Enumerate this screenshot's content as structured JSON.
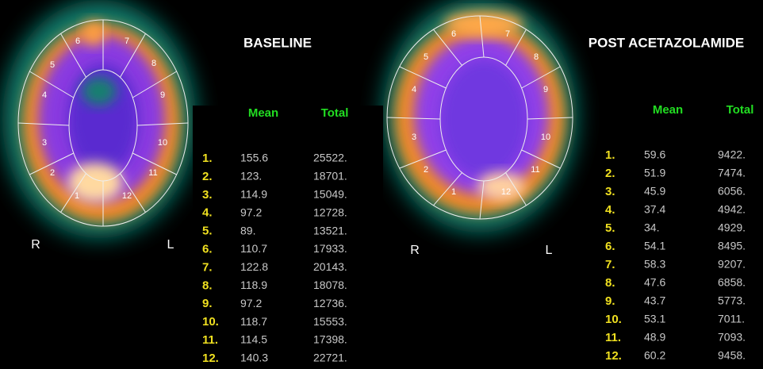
{
  "panels": [
    {
      "title": "BASELINE",
      "orientation": {
        "right": "R",
        "left": "L"
      },
      "regions": [
        "1",
        "2",
        "3",
        "4",
        "5",
        "6",
        "7",
        "8",
        "9",
        "10",
        "11",
        "12"
      ],
      "table": {
        "headers": [
          "Mean",
          "Total"
        ],
        "rows": [
          [
            "1.",
            "155.6",
            "25522."
          ],
          [
            "2.",
            "123.",
            "18701."
          ],
          [
            "3.",
            "114.9",
            "15049."
          ],
          [
            "4.",
            "97.2",
            "12728."
          ],
          [
            "5.",
            "89.",
            "13521."
          ],
          [
            "6.",
            "110.7",
            "17933."
          ],
          [
            "7.",
            "122.8",
            "20143."
          ],
          [
            "8.",
            "118.9",
            "18078."
          ],
          [
            "9.",
            "97.2",
            "12736."
          ],
          [
            "10.",
            "118.7",
            "15553."
          ],
          [
            "11.",
            "114.5",
            "17398."
          ],
          [
            "12.",
            "140.3",
            "22721."
          ]
        ]
      }
    },
    {
      "title": "POST ACETAZOLAMIDE",
      "orientation": {
        "right": "R",
        "left": "L"
      },
      "regions": [
        "1",
        "2",
        "3",
        "4",
        "5",
        "6",
        "7",
        "8",
        "9",
        "10",
        "11",
        "12"
      ],
      "table": {
        "headers": [
          "Mean",
          "Total"
        ],
        "rows": [
          [
            "1.",
            "59.6",
            "9422."
          ],
          [
            "2.",
            "51.9",
            "7474."
          ],
          [
            "3.",
            "45.9",
            "6056."
          ],
          [
            "4.",
            "37.4",
            "4942."
          ],
          [
            "5.",
            "34.",
            "4929."
          ],
          [
            "6.",
            "54.1",
            "8495."
          ],
          [
            "7.",
            "58.3",
            "9207."
          ],
          [
            "8.",
            "47.6",
            "6858."
          ],
          [
            "9.",
            "43.7",
            "5773."
          ],
          [
            "10.",
            "53.1",
            "7011."
          ],
          [
            "11.",
            "48.9",
            "7093."
          ],
          [
            "12.",
            "60.2",
            "9458."
          ]
        ]
      }
    }
  ]
}
